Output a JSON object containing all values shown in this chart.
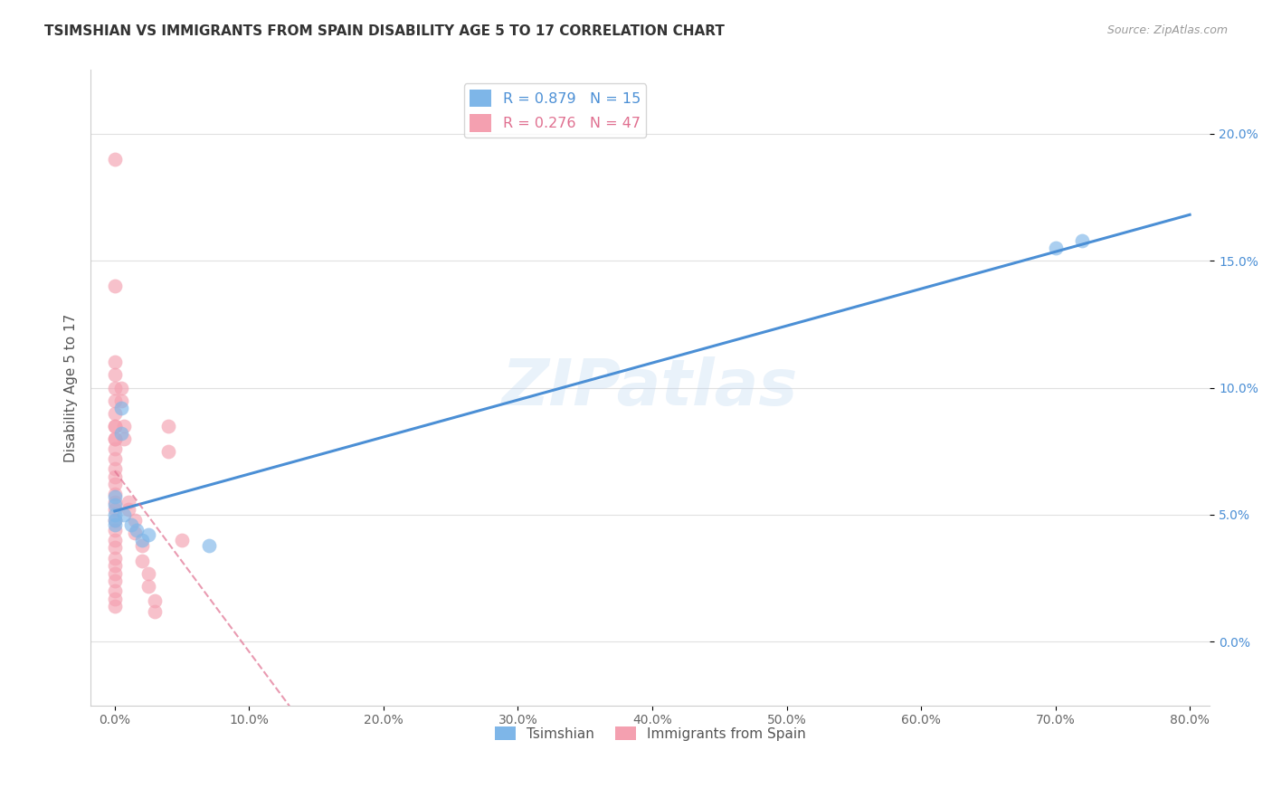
{
  "title": "TSIMSHIAN VS IMMIGRANTS FROM SPAIN DISABILITY AGE 5 TO 17 CORRELATION CHART",
  "source": "Source: ZipAtlas.com",
  "ylabel": "Disability Age 5 to 17",
  "xlim": [
    0.0,
    0.8
  ],
  "x_ticks": [
    0.0,
    0.1,
    0.2,
    0.3,
    0.4,
    0.5,
    0.6,
    0.7,
    0.8
  ],
  "x_tick_labels": [
    "0.0%",
    "10.0%",
    "20.0%",
    "30.0%",
    "40.0%",
    "50.0%",
    "60.0%",
    "70.0%",
    "80.0%"
  ],
  "y_ticks": [
    0.0,
    0.05,
    0.1,
    0.15,
    0.2
  ],
  "y_tick_labels": [
    "0.0%",
    "5.0%",
    "10.0%",
    "15.0%",
    "20.0%"
  ],
  "legend_R_blue": "0.879",
  "legend_N_blue": "15",
  "legend_R_pink": "0.276",
  "legend_N_pink": "47",
  "blue_color": "#7EB6E8",
  "pink_color": "#F4A0B0",
  "blue_line_color": "#4B8FD5",
  "pink_line_color": "#E07090",
  "watermark": "ZIPatlas",
  "tsimshian_x": [
    0.0,
    0.0,
    0.0,
    0.0,
    0.0,
    0.005,
    0.005,
    0.007,
    0.012,
    0.016,
    0.02,
    0.025,
    0.07,
    0.7,
    0.72
  ],
  "tsimshian_y": [
    0.054,
    0.057,
    0.05,
    0.046,
    0.048,
    0.092,
    0.082,
    0.05,
    0.046,
    0.044,
    0.04,
    0.042,
    0.038,
    0.155,
    0.158
  ],
  "spain_x": [
    0.0,
    0.0,
    0.0,
    0.0,
    0.0,
    0.0,
    0.0,
    0.0,
    0.0,
    0.0,
    0.0,
    0.0,
    0.0,
    0.0,
    0.0,
    0.0,
    0.0,
    0.0,
    0.0,
    0.0,
    0.0,
    0.0,
    0.0,
    0.0,
    0.0,
    0.0,
    0.0,
    0.0,
    0.005,
    0.005,
    0.007,
    0.007,
    0.01,
    0.01,
    0.015,
    0.015,
    0.02,
    0.02,
    0.025,
    0.025,
    0.03,
    0.03,
    0.04,
    0.04,
    0.05,
    0.0,
    0.0
  ],
  "spain_y": [
    0.048,
    0.044,
    0.04,
    0.037,
    0.033,
    0.03,
    0.027,
    0.024,
    0.02,
    0.017,
    0.014,
    0.052,
    0.055,
    0.058,
    0.062,
    0.065,
    0.068,
    0.072,
    0.076,
    0.08,
    0.085,
    0.09,
    0.095,
    0.1,
    0.105,
    0.11,
    0.085,
    0.08,
    0.095,
    0.1,
    0.08,
    0.085,
    0.055,
    0.052,
    0.048,
    0.043,
    0.038,
    0.032,
    0.027,
    0.022,
    0.016,
    0.012,
    0.085,
    0.075,
    0.04,
    0.14,
    0.19
  ]
}
